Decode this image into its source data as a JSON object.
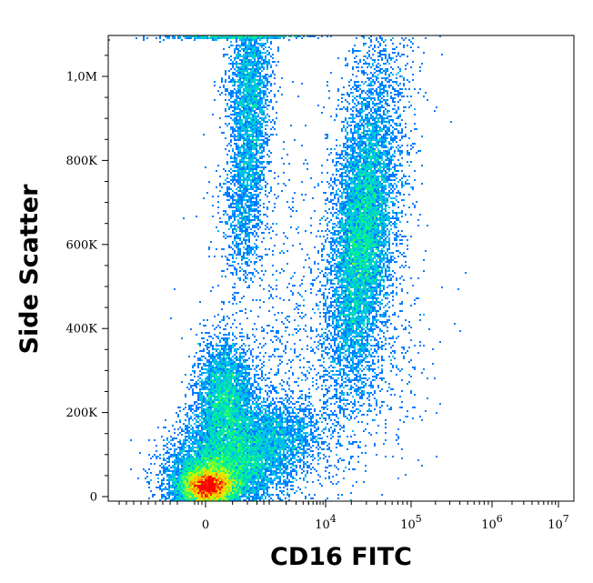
{
  "chart_data": {
    "type": "scatter",
    "style": "flow cytometry density dot plot",
    "title": "",
    "xlabel": "CD16 FITC",
    "ylabel": "Side Scatter",
    "x_scale": "biexponential (linear near 0, log above 10^4)",
    "y_scale": "linear",
    "ylim": [
      0,
      1100000
    ],
    "y_ticks": [
      {
        "value": 0,
        "label": "0"
      },
      {
        "value": 200000,
        "label": "200K"
      },
      {
        "value": 400000,
        "label": "400K"
      },
      {
        "value": 600000,
        "label": "600K"
      },
      {
        "value": 800000,
        "label": "800K"
      },
      {
        "value": 1000000,
        "label": "1,0M"
      }
    ],
    "x_ticks": [
      {
        "value": 0,
        "label": "0",
        "exponent": ""
      },
      {
        "value": 10000,
        "label": "10",
        "exponent": "4"
      },
      {
        "value": 100000,
        "label": "10",
        "exponent": "5"
      },
      {
        "value": 1000000,
        "label": "10",
        "exponent": "6"
      },
      {
        "value": 10000000,
        "label": "10",
        "exponent": "7"
      }
    ],
    "populations": [
      {
        "label": "lymphocytes (dense core)",
        "x_center": 0,
        "ssc_center": 30000,
        "density": "peak"
      },
      {
        "label": "monocytes",
        "x_center": 600,
        "ssc_center": 220000,
        "density": "medium"
      },
      {
        "label": "debris / low-SSC shoulder",
        "x_center": 3000,
        "ssc_center": 100000,
        "density": "low"
      },
      {
        "label": "CD16- high-SSC column",
        "x_center": 1000,
        "ssc_center": 850000,
        "density": "medium"
      },
      {
        "label": "neutrophils (CD16+)",
        "x_center": 30000,
        "ssc_center": 600000,
        "density": "high"
      }
    ],
    "color_scale": [
      "#0000ff",
      "#00b4ff",
      "#00ff80",
      "#c8ff00",
      "#ffc800",
      "#ff0000"
    ],
    "grid": false,
    "legend": "none"
  }
}
